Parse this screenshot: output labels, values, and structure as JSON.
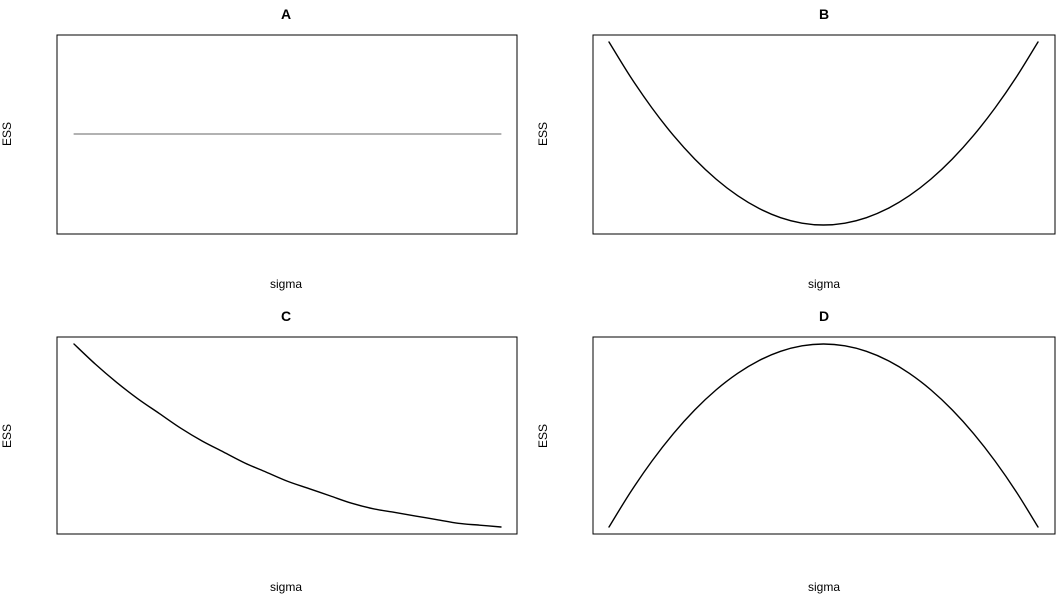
{
  "chart_data": [
    {
      "id": "A",
      "type": "line",
      "title": "A",
      "xlabel": "sigma",
      "ylabel": "ESS",
      "axes": false,
      "xlim": [
        0,
        1
      ],
      "ylim": [
        0,
        1
      ],
      "line_color": "#666666",
      "series": [
        {
          "x": [
            0.0,
            0.25,
            0.5,
            0.75,
            1.0
          ],
          "y": [
            0.5,
            0.5,
            0.5,
            0.5,
            0.5
          ]
        }
      ]
    },
    {
      "id": "B",
      "type": "line",
      "title": "B",
      "xlabel": "sigma",
      "ylabel": "ESS",
      "axes": false,
      "xlim": [
        0,
        1
      ],
      "ylim": [
        0,
        1
      ],
      "line_color": "#000000",
      "series": [
        {
          "x": [
            0.0,
            0.05,
            0.1,
            0.15,
            0.2,
            0.25,
            0.3,
            0.35,
            0.4,
            0.45,
            0.5,
            0.55,
            0.6,
            0.65,
            0.7,
            0.75,
            0.8,
            0.85,
            0.9,
            0.95,
            1.0
          ],
          "y": [
            1.0,
            0.81,
            0.64,
            0.49,
            0.36,
            0.25,
            0.16,
            0.09,
            0.04,
            0.01,
            0.0,
            0.01,
            0.04,
            0.09,
            0.16,
            0.25,
            0.36,
            0.49,
            0.64,
            0.81,
            1.0
          ]
        }
      ]
    },
    {
      "id": "C",
      "type": "line",
      "title": "C",
      "xlabel": "sigma",
      "ylabel": "ESS",
      "axes": false,
      "xlim": [
        0,
        1
      ],
      "ylim": [
        0,
        1
      ],
      "line_color": "#000000",
      "series": [
        {
          "x": [
            0.0,
            0.05,
            0.1,
            0.15,
            0.2,
            0.25,
            0.3,
            0.35,
            0.4,
            0.45,
            0.5,
            0.55,
            0.6,
            0.65,
            0.7,
            0.75,
            0.8,
            0.85,
            0.9,
            0.95,
            1.0
          ],
          "y": [
            1.0,
            0.89,
            0.79,
            0.7,
            0.62,
            0.54,
            0.47,
            0.41,
            0.35,
            0.3,
            0.25,
            0.21,
            0.17,
            0.13,
            0.1,
            0.08,
            0.06,
            0.04,
            0.02,
            0.01,
            0.0
          ]
        }
      ]
    },
    {
      "id": "D",
      "type": "line",
      "title": "D",
      "xlabel": "sigma",
      "ylabel": "ESS",
      "axes": false,
      "xlim": [
        0,
        1
      ],
      "ylim": [
        0,
        1
      ],
      "line_color": "#000000",
      "series": [
        {
          "x": [
            0.0,
            0.05,
            0.1,
            0.15,
            0.2,
            0.25,
            0.3,
            0.35,
            0.4,
            0.45,
            0.5,
            0.55,
            0.6,
            0.65,
            0.7,
            0.75,
            0.8,
            0.85,
            0.9,
            0.95,
            1.0
          ],
          "y": [
            0.0,
            0.19,
            0.36,
            0.51,
            0.64,
            0.75,
            0.84,
            0.91,
            0.96,
            0.99,
            1.0,
            0.99,
            0.96,
            0.91,
            0.84,
            0.75,
            0.64,
            0.51,
            0.36,
            0.19,
            0.0
          ]
        }
      ]
    }
  ]
}
